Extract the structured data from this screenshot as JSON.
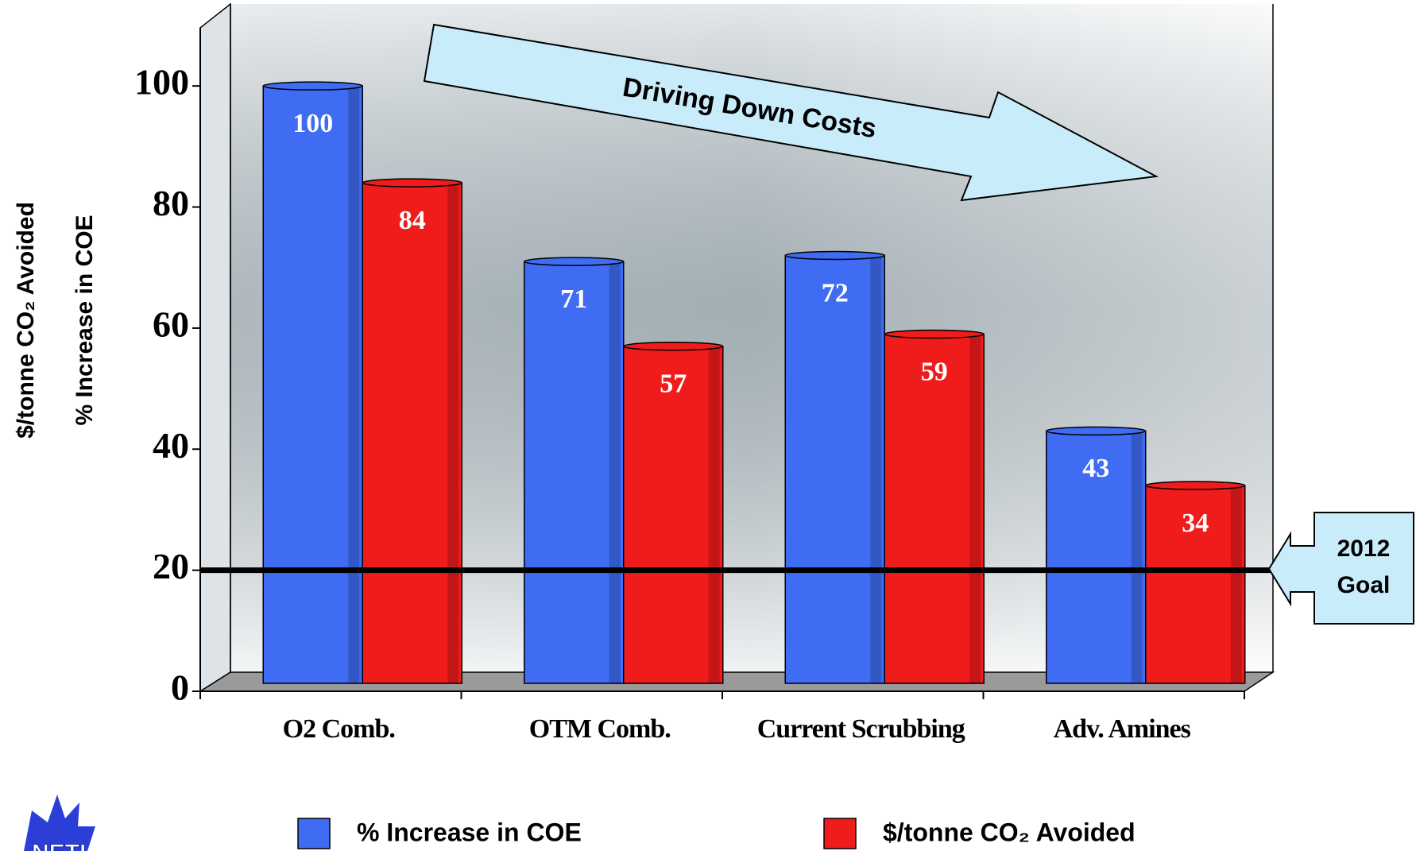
{
  "chart_data": {
    "type": "bar",
    "y_labels": [
      "$/tonne CO₂ Avoided",
      "% Increase in COE"
    ],
    "categories": [
      "O2 Comb.",
      "OTM Comb.",
      "Current Scrubbing",
      "Adv. Amines"
    ],
    "series": [
      {
        "name": "% Increase in COE",
        "color": "#3f6cf2",
        "values": [
          100,
          71,
          72,
          43
        ]
      },
      {
        "name": "$/tonne CO₂ Avoided",
        "color": "#f01c1c",
        "values": [
          84,
          57,
          59,
          34
        ]
      }
    ],
    "ylim": [
      0,
      110
    ],
    "yticks": [
      0,
      20,
      40,
      60,
      80,
      100
    ],
    "annotation": "Driving Down Costs",
    "goal": {
      "value": 20,
      "label": [
        "2012",
        "Goal"
      ]
    },
    "logo": "NETL"
  }
}
